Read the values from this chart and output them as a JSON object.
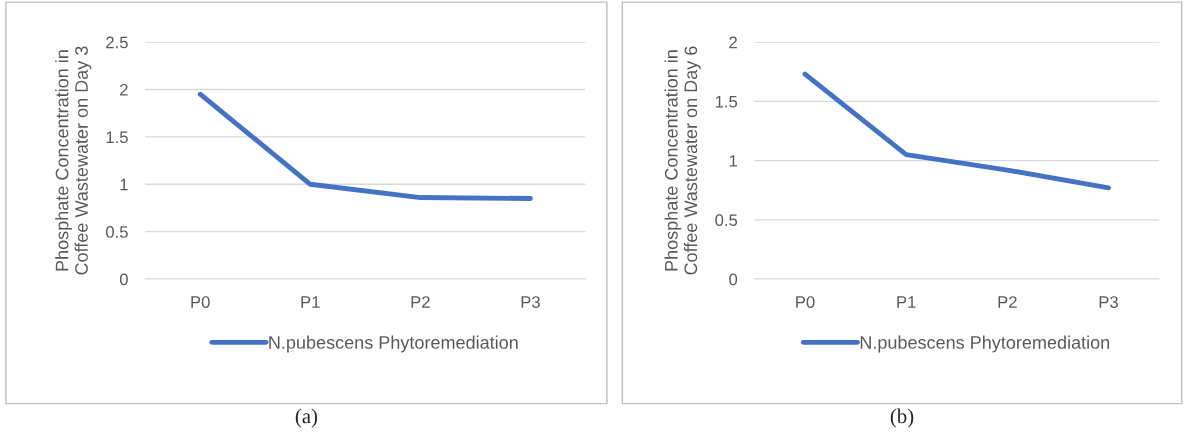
{
  "chart_data": [
    {
      "type": "line",
      "ylabel": "Phosphate Concentration in\nCoffee Wastewater on Day 3",
      "categories": [
        "P0",
        "P1",
        "P2",
        "P3"
      ],
      "series": [
        {
          "name": "N.pubescens Phytoremediation",
          "color": "#4472c4",
          "values": [
            1.95,
            1.0,
            0.86,
            0.85
          ]
        }
      ],
      "ylim": [
        0,
        2.5
      ],
      "yticks": [
        0,
        0.5,
        1,
        1.5,
        2,
        2.5
      ],
      "grid": "y",
      "legend": "bottom",
      "marker": "none",
      "line_style": "solid",
      "annotations": [
        "(a)"
      ]
    },
    {
      "type": "line",
      "ylabel": "Phosphate Concentration in\nCoffee Wastewater on Day 6",
      "categories": [
        "P0",
        "P1",
        "P2",
        "P3"
      ],
      "series": [
        {
          "name": "N.pubescens Phytoremediation",
          "color": "#4472c4",
          "values": [
            1.73,
            1.05,
            0.92,
            0.77
          ]
        }
      ],
      "ylim": [
        0,
        2
      ],
      "yticks": [
        0,
        0.5,
        1,
        1.5,
        2
      ],
      "grid": "y",
      "legend": "bottom",
      "marker": "none",
      "line_style": "solid",
      "annotations": [
        "(b)"
      ]
    }
  ]
}
